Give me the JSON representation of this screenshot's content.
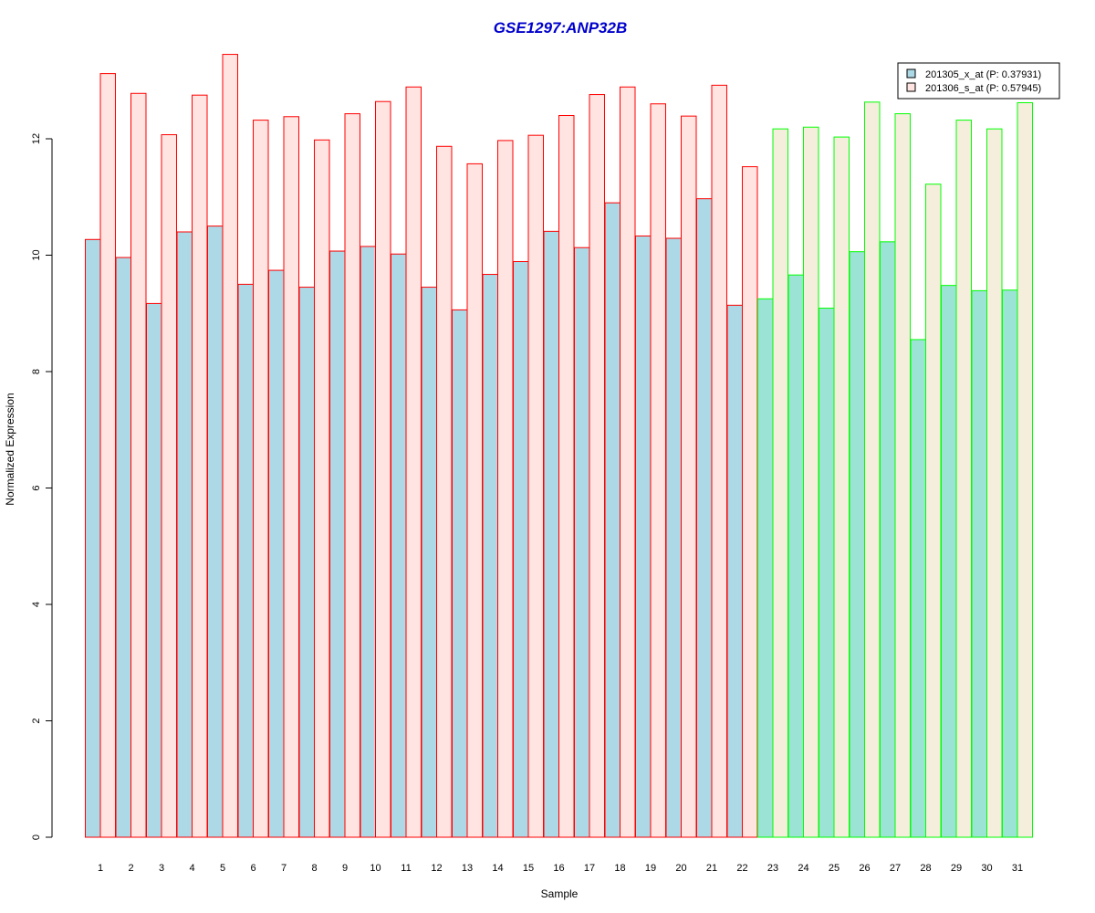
{
  "chart_data": {
    "type": "bar",
    "title": "GSE1297:ANP32B",
    "title_color": "#0000CC",
    "xlabel": "Sample",
    "ylabel": "Normalized Expression",
    "ylim": [
      0,
      14
    ],
    "yticks": [
      0,
      2,
      4,
      6,
      8,
      10,
      12
    ],
    "grid": false,
    "legend_position": "top-right",
    "categories": [
      "1",
      "2",
      "3",
      "4",
      "5",
      "6",
      "7",
      "8",
      "9",
      "10",
      "11",
      "12",
      "13",
      "14",
      "15",
      "16",
      "17",
      "18",
      "19",
      "20",
      "21",
      "22",
      "23",
      "24",
      "25",
      "26",
      "27",
      "28",
      "29",
      "30",
      "31"
    ],
    "series": [
      {
        "name": "201305_x_at (P: 0.37931)",
        "fill_red_group": "#ADD8E6",
        "fill_green_group": "#9AE3D5",
        "values": [
          10.27,
          9.96,
          9.17,
          10.4,
          10.5,
          9.5,
          9.74,
          9.45,
          10.07,
          10.15,
          10.02,
          9.45,
          9.06,
          9.67,
          9.89,
          10.41,
          10.13,
          10.9,
          10.33,
          10.29,
          10.97,
          9.14,
          9.25,
          9.66,
          9.09,
          10.06,
          10.23,
          8.55,
          9.48,
          9.39,
          9.4
        ]
      },
      {
        "name": "201306_s_at (P: 0.57945)",
        "fill_red_group": "#FFE4E1",
        "fill_green_group": "#F5EEDC",
        "values": [
          13.12,
          12.78,
          12.07,
          12.75,
          13.45,
          12.32,
          12.38,
          11.98,
          12.43,
          12.64,
          12.89,
          11.87,
          11.57,
          11.97,
          12.06,
          12.4,
          12.76,
          12.89,
          12.6,
          12.39,
          12.92,
          11.52,
          12.17,
          12.2,
          12.03,
          12.63,
          12.43,
          11.22,
          12.32,
          12.17,
          12.62
        ]
      }
    ],
    "group_borders": {
      "red": "#FF0000",
      "green": "#00FF00"
    },
    "group_assignment": [
      "red",
      "red",
      "red",
      "red",
      "red",
      "red",
      "red",
      "red",
      "red",
      "red",
      "red",
      "red",
      "red",
      "red",
      "red",
      "red",
      "red",
      "red",
      "red",
      "red",
      "red",
      "red",
      "green",
      "green",
      "green",
      "green",
      "green",
      "green",
      "green",
      "green",
      "green"
    ],
    "legend_fills": [
      "#ADD8E6",
      "#FFE4E1"
    ]
  }
}
